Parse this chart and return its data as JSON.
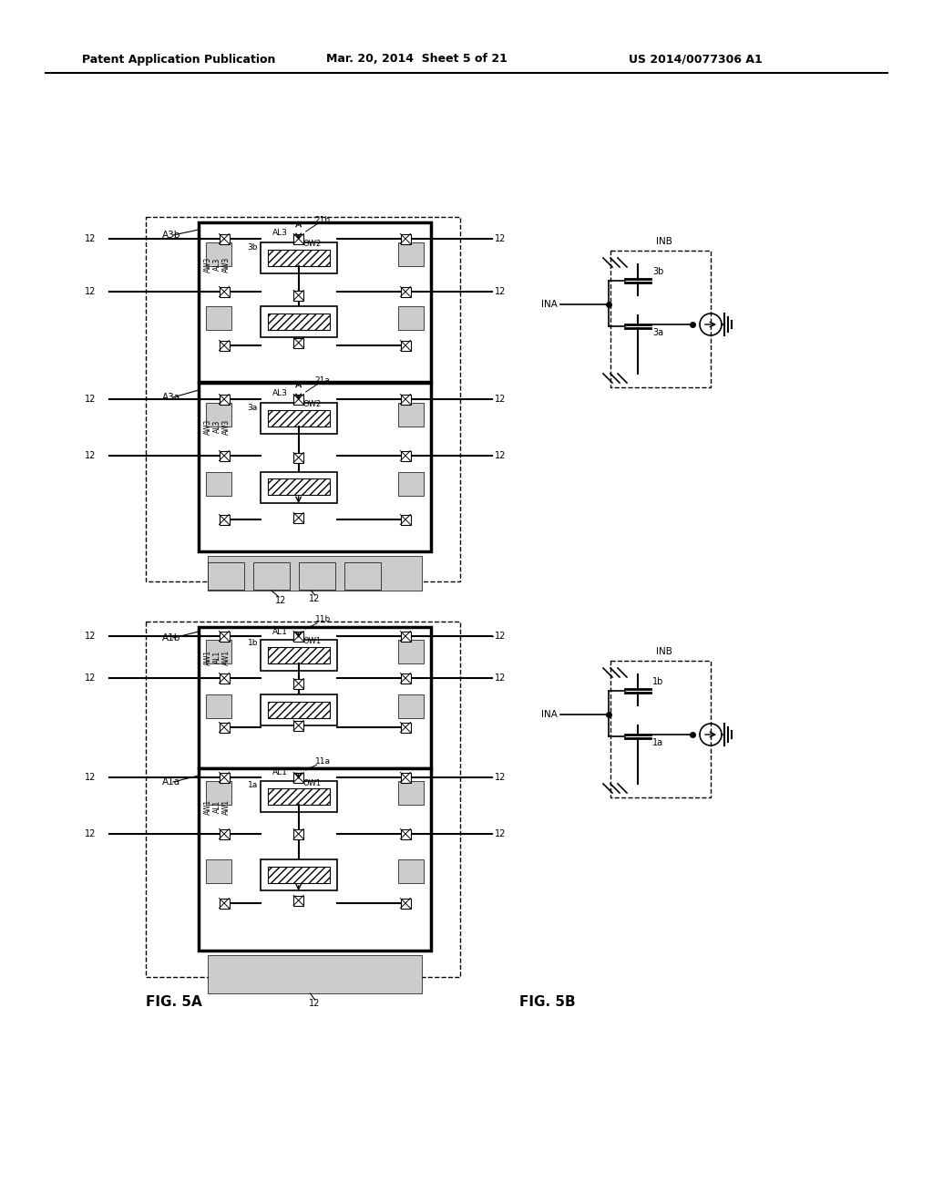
{
  "header_left": "Patent Application Publication",
  "header_center": "Mar. 20, 2014  Sheet 5 of 21",
  "header_right": "US 2014/0077306 A1",
  "fig5a_label": "FIG. 5A",
  "fig5b_label": "FIG. 5B",
  "bg_color": "#ffffff"
}
